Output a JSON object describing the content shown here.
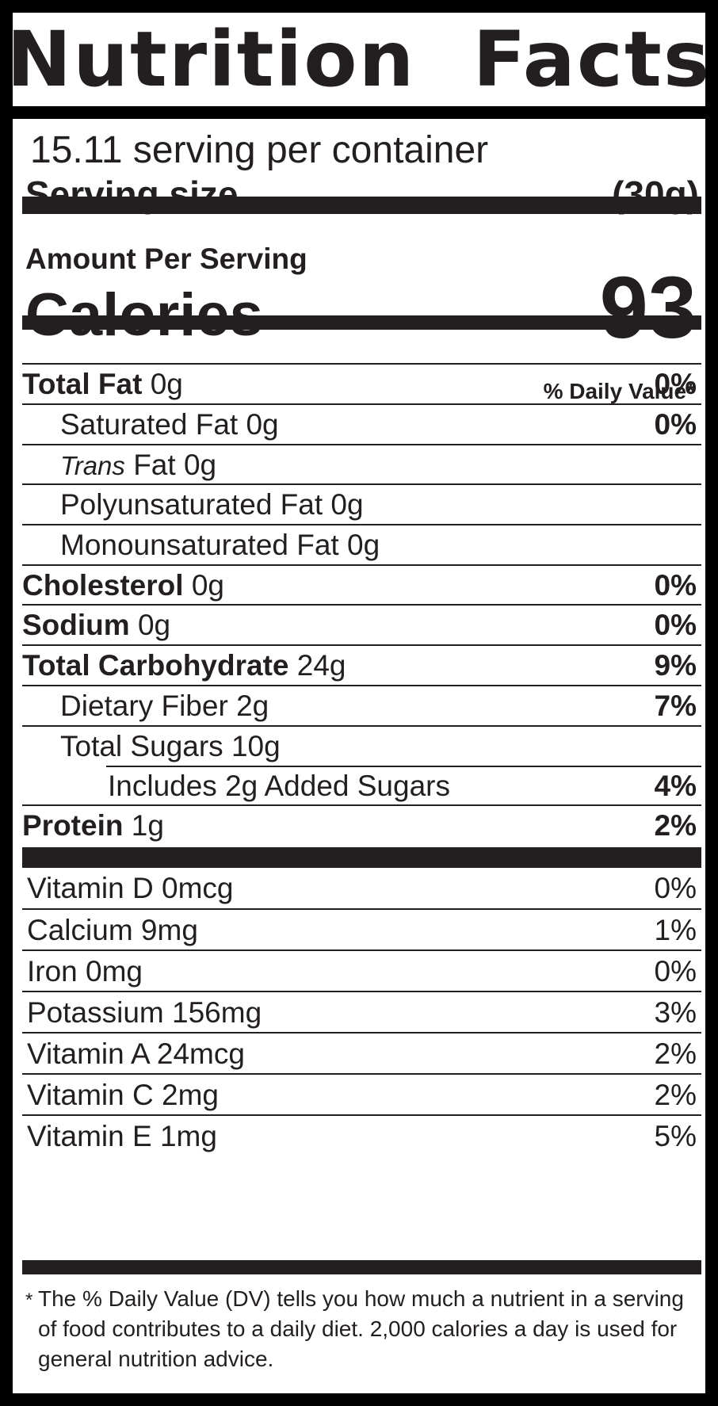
{
  "title": "Nutrition  Facts",
  "servings_per_container": "15.11 serving per container",
  "serving_size": {
    "label": "Serving size",
    "value": "(30g)"
  },
  "amount_per_serving": "Amount Per Serving",
  "calories": {
    "label": "Calories",
    "value": "93"
  },
  "daily_value_header": "% Daily Value*",
  "nutrients": [
    {
      "name": "Total Fat",
      "amount": "0g",
      "dv": "0%"
    },
    {
      "name": "Saturated Fat",
      "amount": "0g",
      "dv": "0%"
    },
    {
      "name_italic": "Trans",
      "name": "Fat",
      "amount": "0g",
      "dv": ""
    },
    {
      "name": "Polyunsaturated Fat",
      "amount": "0g",
      "dv": ""
    },
    {
      "name": "Monounsaturated Fat",
      "amount": "0g",
      "dv": ""
    },
    {
      "name": "Cholesterol",
      "amount": "0g",
      "dv": "0%"
    },
    {
      "name": "Sodium",
      "amount": "0g",
      "dv": "0%"
    },
    {
      "name": "Total Carbohydrate",
      "amount": "24g",
      "dv": "9%"
    },
    {
      "name": "Dietary Fiber",
      "amount": "2g",
      "dv": "7%"
    },
    {
      "name": "Total Sugars",
      "amount": "10g",
      "dv": ""
    },
    {
      "name": "Includes 2g Added Sugars",
      "amount": "",
      "dv": "4%"
    },
    {
      "name": "Protein",
      "amount": "1g",
      "dv": "2%"
    }
  ],
  "vitamins": [
    {
      "name": "Vitamin D 0mcg",
      "dv": "0%"
    },
    {
      "name": "Calcium 9mg",
      "dv": "1%"
    },
    {
      "name": "Iron 0mg",
      "dv": "0%"
    },
    {
      "name": "Potassium 156mg",
      "dv": "3%"
    },
    {
      "name": "Vitamin A 24mcg",
      "dv": "2%"
    },
    {
      "name": "Vitamin C 2mg",
      "dv": "2%"
    },
    {
      "name": "Vitamin E 1mg",
      "dv": "5%"
    }
  ],
  "footnote": {
    "symbol": "*",
    "text": "The % Daily Value (DV) tells you how much a nutrient in a serving of food contributes to a daily diet. 2,000 calories a day is used for general nutrition advice."
  },
  "colors": {
    "ink": "#231f20",
    "background": "#ffffff",
    "frame": "#000000"
  }
}
